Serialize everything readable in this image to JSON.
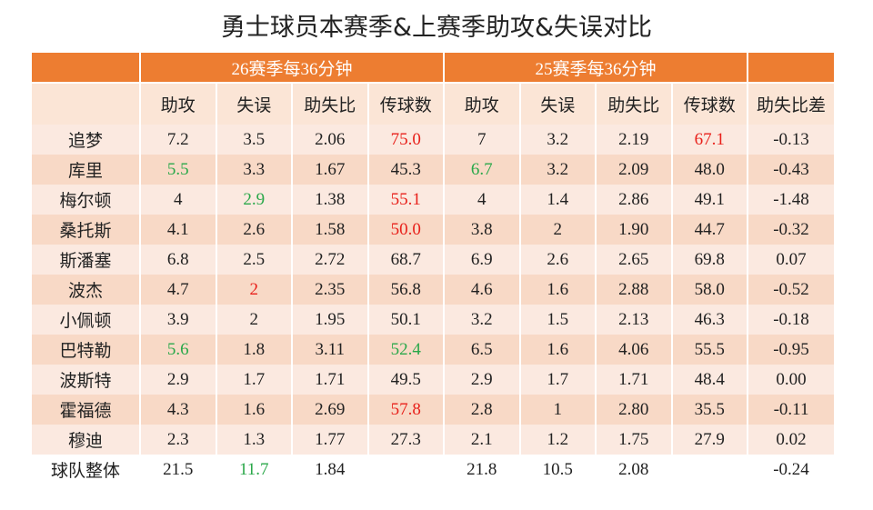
{
  "title": "勇士球员本赛季&上赛季助攻&失误对比",
  "table": {
    "group_headers": [
      "26赛季每36分钟",
      "25赛季每36分钟"
    ],
    "columns": [
      "助攻",
      "失误",
      "助失比",
      "传球数",
      "助攻",
      "失误",
      "助失比",
      "传球数",
      "助失比差"
    ],
    "rows": [
      {
        "cells": [
          "追梦",
          "7.2",
          "3.5",
          "2.06",
          {
            "text": "75.0",
            "color": "#e8201a"
          },
          "7",
          "3.2",
          "2.19",
          {
            "text": "67.1",
            "color": "#e8201a"
          },
          "-0.13"
        ]
      },
      {
        "cells": [
          "库里",
          {
            "text": "5.5",
            "color": "#2aa84a"
          },
          "3.3",
          "1.67",
          "45.3",
          {
            "text": "6.7",
            "color": "#2aa84a"
          },
          "3.2",
          "2.09",
          "48.0",
          "-0.43"
        ]
      },
      {
        "cells": [
          "梅尔顿",
          "4",
          {
            "text": "2.9",
            "color": "#2aa84a"
          },
          "1.38",
          {
            "text": "55.1",
            "color": "#e8201a"
          },
          "4",
          "1.4",
          "2.86",
          "49.1",
          "-1.48"
        ]
      },
      {
        "cells": [
          "桑托斯",
          "4.1",
          "2.6",
          "1.58",
          {
            "text": "50.0",
            "color": "#e8201a"
          },
          "3.8",
          "2",
          "1.90",
          "44.7",
          "-0.32"
        ]
      },
      {
        "cells": [
          "斯潘塞",
          "6.8",
          "2.5",
          "2.72",
          "68.7",
          "6.9",
          "2.6",
          "2.65",
          "69.8",
          "0.07"
        ]
      },
      {
        "cells": [
          "波杰",
          "4.7",
          {
            "text": "2",
            "color": "#e8201a"
          },
          "2.35",
          "56.8",
          "4.6",
          "1.6",
          "2.88",
          "58.0",
          "-0.52"
        ]
      },
      {
        "cells": [
          "小佩顿",
          "3.9",
          "2",
          "1.95",
          "50.1",
          "3.2",
          "1.5",
          "2.13",
          "46.3",
          "-0.18"
        ]
      },
      {
        "cells": [
          "巴特勒",
          {
            "text": "5.6",
            "color": "#2aa84a"
          },
          "1.8",
          "3.11",
          {
            "text": "52.4",
            "color": "#2aa84a"
          },
          "6.5",
          "1.6",
          "4.06",
          "55.5",
          "-0.95"
        ]
      },
      {
        "cells": [
          "波斯特",
          "2.9",
          "1.7",
          "1.71",
          "49.5",
          "2.9",
          "1.7",
          "1.71",
          "48.4",
          "0.00"
        ]
      },
      {
        "cells": [
          "霍福德",
          "4.3",
          "1.6",
          "2.69",
          {
            "text": "57.8",
            "color": "#e8201a"
          },
          "2.8",
          "1",
          "2.80",
          "35.5",
          "-0.11"
        ]
      },
      {
        "cells": [
          "穆迪",
          "2.3",
          "1.3",
          "1.77",
          "27.3",
          "2.1",
          "1.2",
          "1.75",
          "27.9",
          "0.02"
        ]
      },
      {
        "cells": [
          "球队整体",
          "21.5",
          {
            "text": "11.7",
            "color": "#2aa84a"
          },
          "1.84",
          null,
          "21.8",
          "10.5",
          "2.08",
          null,
          "-0.24"
        ]
      }
    ]
  }
}
